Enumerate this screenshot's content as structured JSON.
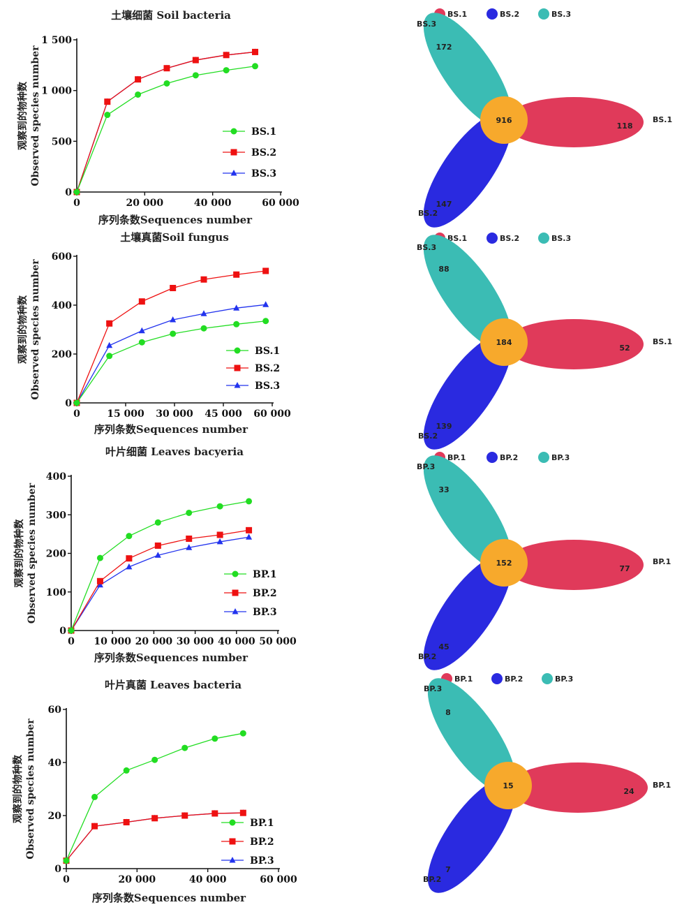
{
  "chart_data": [
    {
      "type": "line",
      "title": "土壤细菌 Soil bacteria",
      "xlabel": "序列条数Sequences number",
      "ylabel_cn": "观察到的物种数",
      "ylabel_en": "Observed species number",
      "xlim": [
        0,
        60000
      ],
      "ylim": [
        0,
        1500
      ],
      "xticks": [
        0,
        20000,
        40000,
        60000
      ],
      "xtick_labels": [
        "0",
        "20 000",
        "40 000",
        "60 000"
      ],
      "yticks": [
        0,
        500,
        1000,
        1500
      ],
      "ytick_labels": [
        "0",
        "500",
        "1 000",
        "1 500"
      ],
      "x": [
        0,
        9000,
        18000,
        26500,
        35000,
        44000,
        52500
      ],
      "series": [
        {
          "name": "BS.1",
          "color": "#22dd22",
          "marker": "circle",
          "values": [
            0,
            760,
            960,
            1070,
            1150,
            1200,
            1240
          ]
        },
        {
          "name": "BS.2",
          "color": "#ee1111",
          "marker": "square",
          "values": [
            0,
            890,
            1110,
            1220,
            1300,
            1350,
            1380
          ]
        },
        {
          "name": "BS.3",
          "color": "#2233ee",
          "marker": "triangle",
          "values": [
            0,
            890,
            1110,
            1220,
            1300,
            1350,
            1380
          ]
        }
      ],
      "legend_position": "center-right"
    },
    {
      "type": "line",
      "title": "土壤真菌Soil fungus",
      "xlabel": "序列条数Sequences number",
      "ylabel_cn": "观察到的物种数",
      "ylabel_en": "Observed species number",
      "xlim": [
        0,
        60000
      ],
      "ylim": [
        0,
        600
      ],
      "xticks": [
        0,
        15000,
        30000,
        45000,
        60000
      ],
      "xtick_labels": [
        "0",
        "15 000",
        "30 000",
        "45 000",
        "60 000"
      ],
      "yticks": [
        0,
        200,
        400,
        600
      ],
      "ytick_labels": [
        "0",
        "200",
        "400",
        "600"
      ],
      "x": [
        0,
        10000,
        20000,
        29500,
        39000,
        49000,
        58000
      ],
      "series": [
        {
          "name": "BS.1",
          "color": "#22dd22",
          "marker": "circle",
          "values": [
            0,
            192,
            248,
            283,
            305,
            322,
            335
          ]
        },
        {
          "name": "BS.2",
          "color": "#ee1111",
          "marker": "square",
          "values": [
            0,
            325,
            415,
            470,
            505,
            525,
            540
          ]
        },
        {
          "name": "BS.3",
          "color": "#2233ee",
          "marker": "triangle",
          "values": [
            0,
            235,
            295,
            340,
            365,
            388,
            402
          ]
        }
      ],
      "legend_position": "center-right"
    },
    {
      "type": "line",
      "title": "叶片细菌 Leaves bacyeria",
      "xlabel": "序列条数Sequences number",
      "ylabel_cn": "观察到的物种数",
      "ylabel_en": "Observed species number",
      "xlim": [
        0,
        50000
      ],
      "ylim": [
        0,
        400
      ],
      "xticks": [
        0,
        10000,
        20000,
        30000,
        40000,
        50000
      ],
      "xtick_labels": [
        "0",
        "10 000",
        "20 000",
        "30 000",
        "40 000",
        "50 000"
      ],
      "yticks": [
        0,
        100,
        200,
        300,
        400
      ],
      "ytick_labels": [
        "0",
        "100",
        "200",
        "300",
        "400"
      ],
      "x": [
        0,
        7000,
        14000,
        21000,
        28500,
        36000,
        43000
      ],
      "series": [
        {
          "name": "BP.1",
          "color": "#22dd22",
          "marker": "circle",
          "values": [
            0,
            188,
            245,
            280,
            305,
            322,
            335
          ]
        },
        {
          "name": "BP.2",
          "color": "#ee1111",
          "marker": "square",
          "values": [
            0,
            128,
            187,
            220,
            238,
            248,
            260
          ]
        },
        {
          "name": "BP.3",
          "color": "#2233ee",
          "marker": "triangle",
          "values": [
            0,
            118,
            165,
            195,
            215,
            230,
            242
          ]
        }
      ],
      "legend_position": "bottom-right"
    },
    {
      "type": "line",
      "title": "叶片真菌 Leaves bacteria",
      "xlabel": "序列条数Sequences number",
      "ylabel_cn": "观察到的物种数",
      "ylabel_en": "Observed species number",
      "xlim": [
        0,
        60000
      ],
      "ylim": [
        0,
        60
      ],
      "xticks": [
        0,
        20000,
        40000,
        60000
      ],
      "xtick_labels": [
        "0",
        "20 000",
        "40 000",
        "60 000"
      ],
      "yticks": [
        0,
        20,
        40,
        60
      ],
      "ytick_labels": [
        "0",
        "20",
        "40",
        "60"
      ],
      "x": [
        0,
        8000,
        17000,
        25000,
        33500,
        42000,
        50000
      ],
      "series": [
        {
          "name": "BP.1",
          "color": "#22dd22",
          "marker": "circle",
          "values": [
            3,
            27,
            37,
            41,
            45.5,
            49,
            51
          ]
        },
        {
          "name": "BP.2",
          "color": "#ee1111",
          "marker": "square",
          "values": [
            3,
            16,
            17.5,
            19,
            20,
            20.8,
            21
          ]
        },
        {
          "name": "BP.3",
          "color": "#2233ee",
          "marker": "triangle",
          "values": [
            3,
            16,
            17.5,
            19,
            20,
            20.8,
            21
          ]
        }
      ],
      "legend_position": "bottom-right"
    }
  ],
  "venn_data": [
    {
      "legend": [
        {
          "name": "BS.1",
          "color": "#e03a5a"
        },
        {
          "name": "BS.2",
          "color": "#2a2ae0"
        },
        {
          "name": "BS.3",
          "color": "#3bbcb4"
        }
      ],
      "center_color": "#f7a92c",
      "petal_labels": {
        "top": "BS.3",
        "right": "BS.1",
        "bottom": "BS.2"
      },
      "values": {
        "top": "172",
        "right": "118",
        "bottom": "147",
        "center": "916"
      }
    },
    {
      "legend": [
        {
          "name": "BS.1",
          "color": "#e03a5a"
        },
        {
          "name": "BS.2",
          "color": "#2a2ae0"
        },
        {
          "name": "BS.3",
          "color": "#3bbcb4"
        }
      ],
      "center_color": "#f7a92c",
      "petal_labels": {
        "top": "BS.3",
        "right": "BS.1",
        "bottom": "BS.2"
      },
      "values": {
        "top": "88",
        "right": "52",
        "bottom": "139",
        "center": "184"
      }
    },
    {
      "legend": [
        {
          "name": "BP.1",
          "color": "#e03a5a"
        },
        {
          "name": "BP.2",
          "color": "#2a2ae0"
        },
        {
          "name": "BP.3",
          "color": "#3bbcb4"
        }
      ],
      "center_color": "#f7a92c",
      "petal_labels": {
        "top": "BP.3",
        "right": "BP.1",
        "bottom": "BP.2"
      },
      "values": {
        "top": "33",
        "right": "77",
        "bottom": "45",
        "center": "152"
      }
    },
    {
      "legend": [
        {
          "name": "BP.1",
          "color": "#e03a5a"
        },
        {
          "name": "BP.2",
          "color": "#2a2ae0"
        },
        {
          "name": "BP.3",
          "color": "#3bbcb4"
        }
      ],
      "center_color": "#f7a92c",
      "petal_labels": {
        "top": "BP.3",
        "right": "BP.1",
        "bottom": "BP.2"
      },
      "values": {
        "top": "8",
        "right": "24",
        "bottom": "7",
        "center": "15"
      }
    }
  ]
}
